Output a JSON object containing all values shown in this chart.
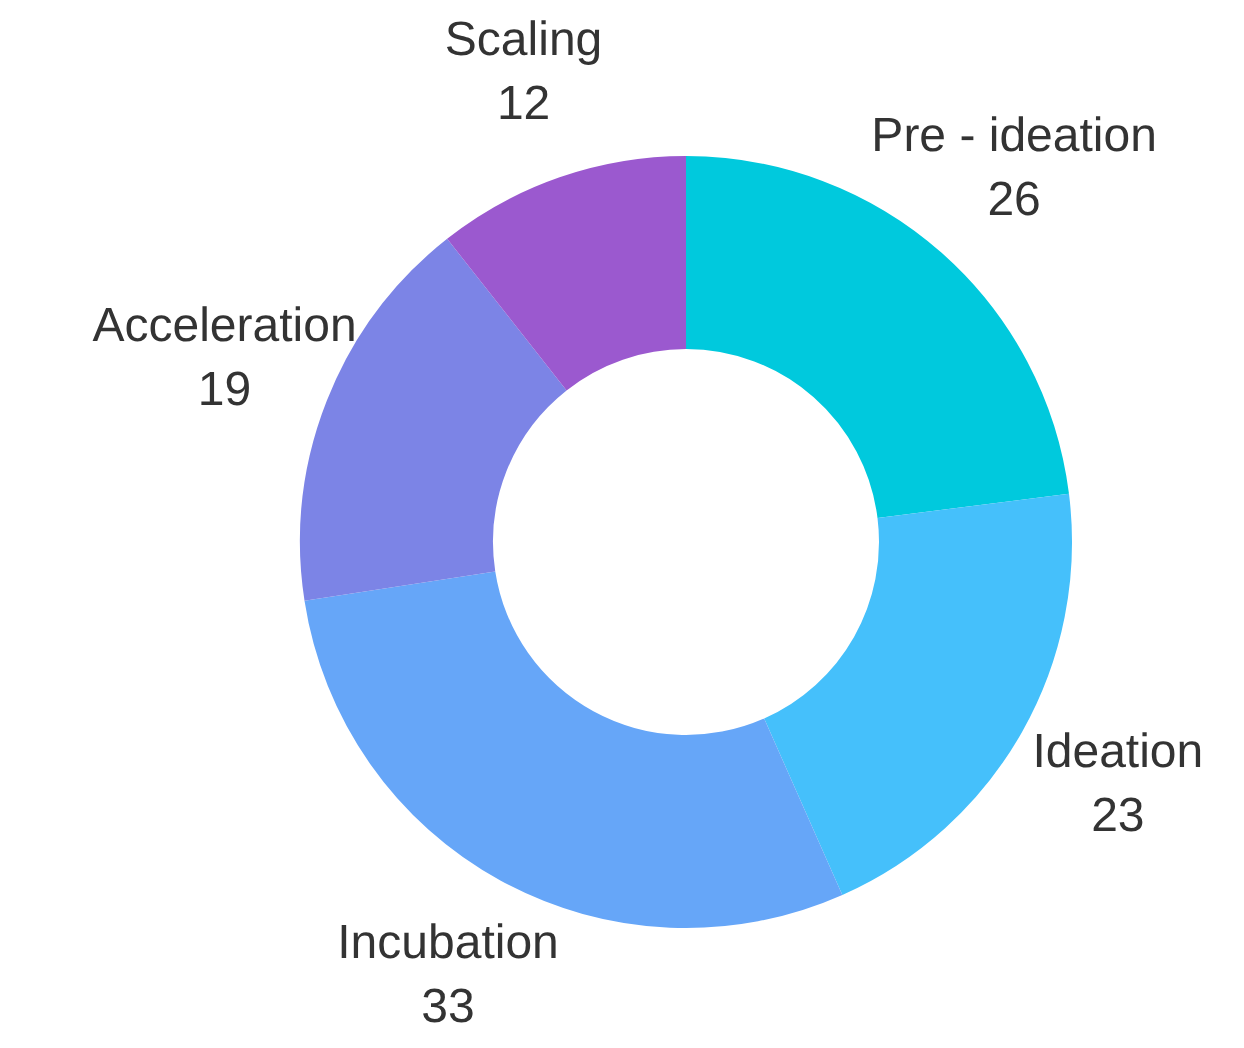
{
  "chart_data": {
    "type": "donut",
    "categories": [
      "Pre - ideation",
      "Ideation",
      "Incubation",
      "Acceleration",
      "Scaling"
    ],
    "values": [
      26,
      23,
      33,
      19,
      12
    ],
    "colors": [
      "#00c9dd",
      "#45c0fb",
      "#66a6f8",
      "#7c84e6",
      "#9b59cf"
    ],
    "data_labels": true,
    "legend": false
  }
}
